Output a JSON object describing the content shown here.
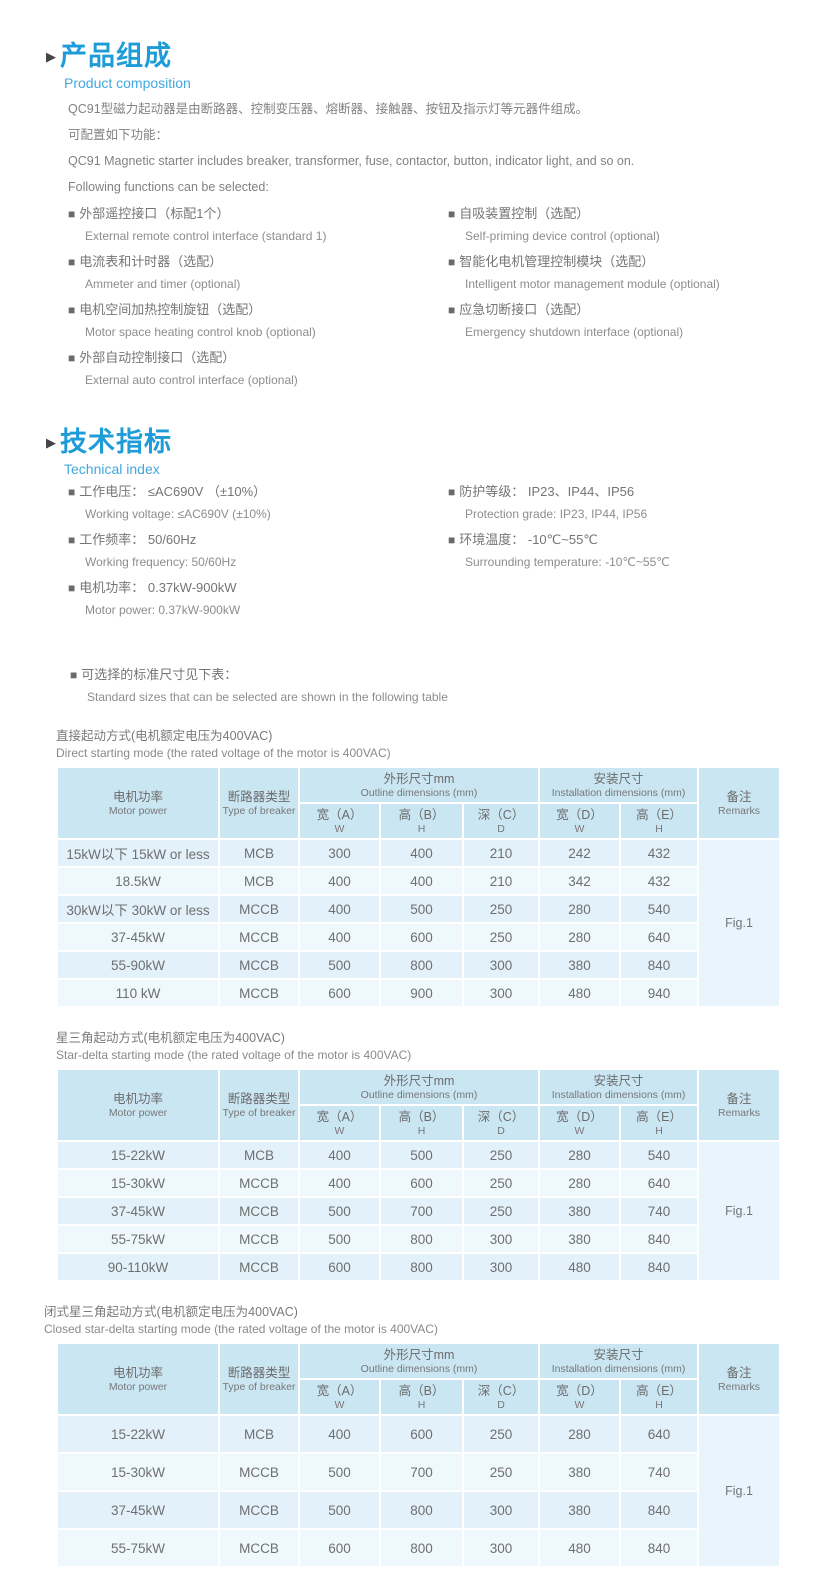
{
  "colors": {
    "accent": "#1e9cd8",
    "subtitle_blue": "#41a8e0",
    "table_header_bg": "#cbe6f3",
    "row_odd": "#e2f1fa",
    "row_even": "#eef8fd",
    "body_text": "#7b7b7b"
  },
  "product": {
    "title_cn": "产品组成",
    "title_en": "Product composition",
    "para1": "QC91型磁力起动器是由断路器、控制变压器、熔断器、接触器、按钮及指示灯等元器件组成。",
    "para2": "可配置如下功能：",
    "para3": "QC91 Magnetic starter includes breaker, transformer, fuse, contactor, button, indicator light, and so on.",
    "para4": "Following functions can be selected:",
    "bullet": "■",
    "features_left": [
      {
        "cn": "外部遥控接口（标配1个）",
        "en": "External remote control interface (standard 1)"
      },
      {
        "cn": "电流表和计时器（选配）",
        "en": "Ammeter and timer (optional)"
      },
      {
        "cn": "电机空间加热控制旋钮（选配）",
        "en": "Motor space heating control knob (optional)"
      },
      {
        "cn": "外部自动控制接口（选配）",
        "en": "External auto control interface (optional)"
      }
    ],
    "features_right": [
      {
        "cn": "自吸装置控制（选配）",
        "en": "Self-priming device control (optional)"
      },
      {
        "cn": "智能化电机管理控制模块（选配）",
        "en": "Intelligent motor management module (optional)"
      },
      {
        "cn": "应急切断接口（选配）",
        "en": "Emergency shutdown interface (optional)"
      }
    ]
  },
  "technical": {
    "title_cn": "技术指标",
    "title_en": "Technical index",
    "items_left": [
      {
        "cn": "工作电压： ≤AC690V （±10%）",
        "en": "Working voltage: ≤AC690V (±10%)"
      },
      {
        "cn": "工作频率： 50/60Hz",
        "en": "Working frequency: 50/60Hz"
      },
      {
        "cn": "电机功率： 0.37kW-900kW",
        "en": "Motor power: 0.37kW-900kW"
      }
    ],
    "items_right": [
      {
        "cn": "防护等级： IP23、IP44、IP56",
        "en": "Protection grade: IP23, IP44, IP56"
      },
      {
        "cn": "环境温度： -10℃~55℃",
        "en": "Surrounding temperature: -10℃~55℃"
      }
    ],
    "note_cn": "可选择的标准尺寸见下表：",
    "note_en": "Standard sizes that can be selected are shown in the following table"
  },
  "table_header": {
    "col_motor_cn": "电机功率",
    "col_motor_en": "Motor power",
    "col_breaker_cn": "断路器类型",
    "col_breaker_en": "Type of breaker",
    "group_outline_cn": "外形尺寸mm",
    "group_outline_en": "Outline dimensions (mm)",
    "group_install_cn": "安装尺寸",
    "group_install_en": "Installation dimensions (mm)",
    "sub_a": "宽（A）",
    "sub_b": "高（B）",
    "sub_c": "深（C）",
    "sub_d": "宽（D）",
    "sub_e": "高（E）",
    "letter_w": "W",
    "letter_h": "H",
    "letter_d": "D",
    "col_remarks_cn": "备注",
    "col_remarks_en": "Remarks"
  },
  "tables": [
    {
      "caption_cn": "直接起动方式(电机额定电压为400VAC)",
      "caption_en": "Direct starting mode (the rated voltage of the motor is 400VAC)",
      "remark": "Fig.1",
      "rows": [
        [
          "15kW以下 15kW or less",
          "MCB",
          "300",
          "400",
          "210",
          "242",
          "432"
        ],
        [
          "18.5kW",
          "MCB",
          "400",
          "400",
          "210",
          "342",
          "432"
        ],
        [
          "30kW以下 30kW or less",
          "MCCB",
          "400",
          "500",
          "250",
          "280",
          "540"
        ],
        [
          "37-45kW",
          "MCCB",
          "400",
          "600",
          "250",
          "280",
          "640"
        ],
        [
          "55-90kW",
          "MCCB",
          "500",
          "800",
          "300",
          "380",
          "840"
        ],
        [
          "110 kW",
          "MCCB",
          "600",
          "900",
          "300",
          "480",
          "940"
        ]
      ]
    },
    {
      "caption_cn": "星三角起动方式(电机额定电压为400VAC)",
      "caption_en": "Star-delta starting mode (the rated voltage of the motor is 400VAC)",
      "remark": "Fig.1",
      "rows": [
        [
          "15-22kW",
          "MCB",
          "400",
          "500",
          "250",
          "280",
          "540"
        ],
        [
          "15-30kW",
          "MCCB",
          "400",
          "600",
          "250",
          "280",
          "640"
        ],
        [
          "37-45kW",
          "MCCB",
          "500",
          "700",
          "250",
          "380",
          "740"
        ],
        [
          "55-75kW",
          "MCCB",
          "500",
          "800",
          "300",
          "380",
          "840"
        ],
        [
          "90-110kW",
          "MCCB",
          "600",
          "800",
          "300",
          "480",
          "840"
        ]
      ]
    },
    {
      "caption_cn": "闭式星三角起动方式(电机额定电压为400VAC)",
      "caption_en": "Closed star-delta starting mode (the rated voltage of the motor is 400VAC)",
      "remark": "Fig.1",
      "rows": [
        [
          "15-22kW",
          "MCB",
          "400",
          "600",
          "250",
          "280",
          "640"
        ],
        [
          "15-30kW",
          "MCCB",
          "500",
          "700",
          "250",
          "380",
          "740"
        ],
        [
          "37-45kW",
          "MCCB",
          "500",
          "800",
          "300",
          "380",
          "840"
        ],
        [
          "55-75kW",
          "MCCB",
          "600",
          "800",
          "300",
          "480",
          "840"
        ]
      ]
    }
  ]
}
